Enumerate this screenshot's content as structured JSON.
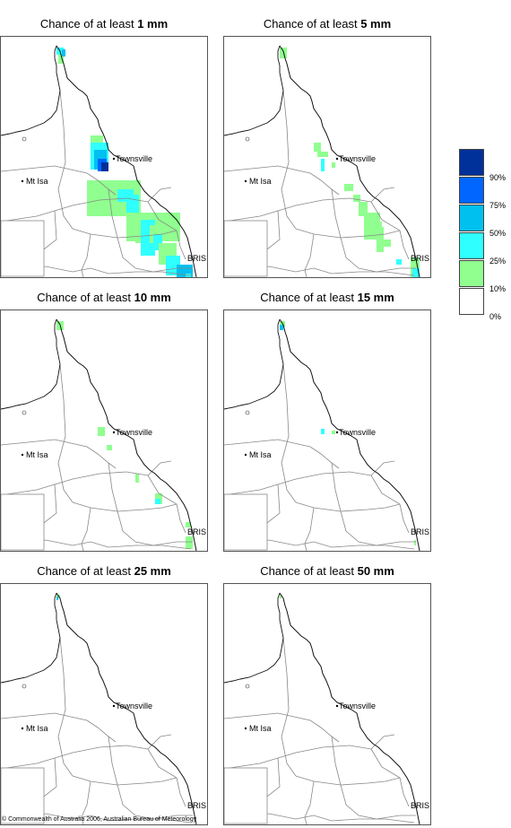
{
  "panels": [
    {
      "title_prefix": "Chance of at least ",
      "threshold": "1 mm"
    },
    {
      "title_prefix": "Chance of at least ",
      "threshold": "5 mm"
    },
    {
      "title_prefix": "Chance of at least ",
      "threshold": "10 mm"
    },
    {
      "title_prefix": "Chance of at least ",
      "threshold": "15 mm"
    },
    {
      "title_prefix": "Chance of at least ",
      "threshold": "25 mm"
    },
    {
      "title_prefix": "Chance of at least ",
      "threshold": "50 mm"
    }
  ],
  "cities": {
    "townsville": "Townsville",
    "mt_isa": "Mt Isa",
    "brisbane": "BRIS"
  },
  "legend": {
    "labels": [
      "90%",
      "75%",
      "50%",
      "25%",
      "10%",
      "0%"
    ],
    "colors": [
      "#00309a",
      "#0066ff",
      "#00c0f0",
      "#30ffff",
      "#90ff90",
      "#ffffff"
    ]
  },
  "copyright": "© Commonwealth of Australia 2006, Australian Bureau of Meteorology"
}
